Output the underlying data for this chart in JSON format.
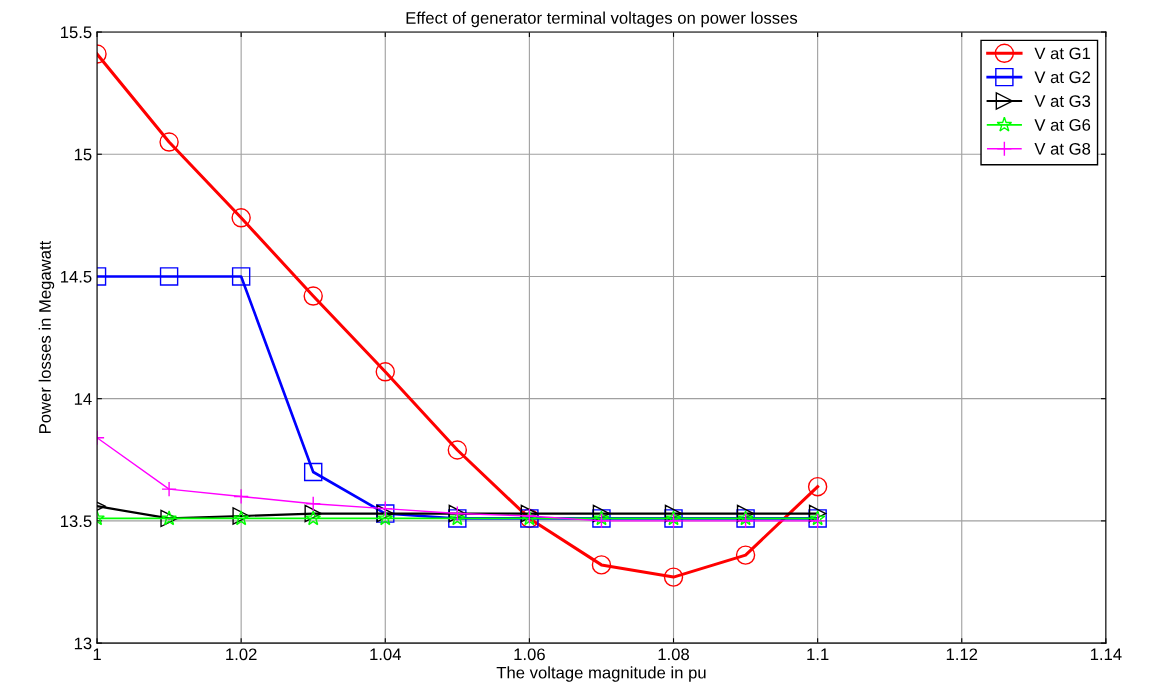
{
  "chart_data": {
    "type": "line",
    "title": "Effect of generator terminal voltages on power losses",
    "xlabel": "The voltage magnitude in pu",
    "ylabel": "Power losses in Megawatt",
    "x": [
      1.0,
      1.01,
      1.02,
      1.03,
      1.04,
      1.05,
      1.06,
      1.07,
      1.08,
      1.09,
      1.1
    ],
    "series": [
      {
        "name": "V at G1",
        "color": "#ff0000",
        "marker": "circle",
        "values": [
          15.41,
          15.05,
          14.74,
          14.42,
          14.11,
          13.79,
          13.51,
          13.32,
          13.27,
          13.36,
          13.64
        ]
      },
      {
        "name": "V at G2",
        "color": "#0000ff",
        "marker": "square",
        "values": [
          14.5,
          14.5,
          14.5,
          13.7,
          13.53,
          13.51,
          13.51,
          13.51,
          13.51,
          13.51,
          13.51
        ]
      },
      {
        "name": "V at G3",
        "color": "#000000",
        "marker": "triangle",
        "values": [
          13.56,
          13.51,
          13.52,
          13.53,
          13.53,
          13.53,
          13.53,
          13.53,
          13.53,
          13.53,
          13.53
        ]
      },
      {
        "name": "V at G6",
        "color": "#00ff00",
        "marker": "star",
        "values": [
          13.51,
          13.51,
          13.51,
          13.51,
          13.51,
          13.51,
          13.51,
          13.51,
          13.51,
          13.51,
          13.51
        ]
      },
      {
        "name": "V at G8",
        "color": "#ff00ff",
        "marker": "cross",
        "values": [
          13.84,
          13.63,
          13.6,
          13.57,
          13.55,
          13.53,
          13.52,
          13.5,
          13.5,
          13.5,
          13.5
        ]
      }
    ],
    "xlim": [
      1.0,
      1.14
    ],
    "xticks": [
      1,
      1.02,
      1.04,
      1.06,
      1.08,
      1.1,
      1.12,
      1.14
    ],
    "ylim": [
      13,
      15.5
    ],
    "yticks": [
      13,
      13.5,
      14,
      14.5,
      15,
      15.5
    ],
    "grid": true,
    "legend": "top right",
    "line_style": "solid"
  }
}
